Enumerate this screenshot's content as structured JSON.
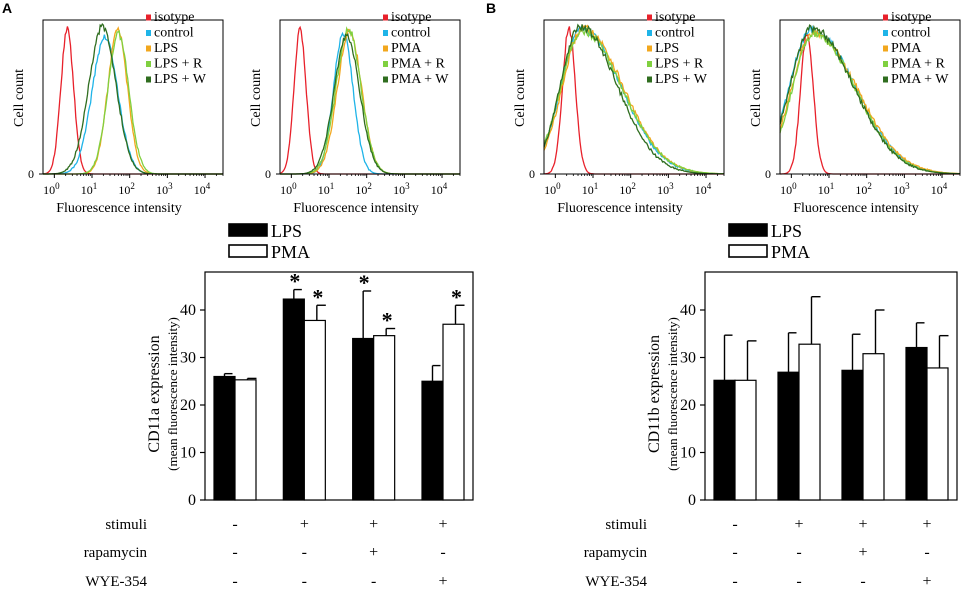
{
  "figure": {
    "panel_labels": [
      "A",
      "B"
    ],
    "row_labels": [
      "stimuli",
      "rapamycin",
      "WYE-354"
    ],
    "row_values": [
      [
        "-",
        "+",
        "+",
        "+"
      ],
      [
        "-",
        "-",
        "+",
        "-"
      ],
      [
        "-",
        "-",
        "-",
        "+"
      ]
    ],
    "colors": {
      "isotype": "#e8212b",
      "control": "#1fb4e8",
      "stim": "#f2a71d",
      "stim_R": "#80d040",
      "stim_W": "#2f6d1f",
      "bar_lps": "#000000",
      "bar_pma": "#ffffff"
    }
  },
  "chart_data": [
    {
      "id": "A-hist-LPS",
      "type": "line",
      "subtype": "histogram",
      "xscale": "log",
      "xlim": [
        0.5,
        30000
      ],
      "xticks": [
        "10^0",
        "10^1",
        "10^2",
        "10^3",
        "10^4"
      ],
      "yticks": [
        "0"
      ],
      "xlabel": "Fluorescence intensity",
      "ylabel": "Cell count",
      "legend": [
        "isotype",
        "control",
        "LPS",
        "LPS + R",
        "LPS + W"
      ],
      "series": [
        {
          "name": "isotype",
          "peak": 2.2,
          "width": 0.17,
          "height": 0.95
        },
        {
          "name": "control",
          "peak": 22,
          "width": 0.34,
          "height": 0.9
        },
        {
          "name": "LPS",
          "peak": 48,
          "width": 0.26,
          "height": 0.95
        },
        {
          "name": "LPS + R",
          "peak": 50,
          "width": 0.28,
          "height": 0.92
        },
        {
          "name": "LPS + W",
          "peak": 19,
          "width": 0.36,
          "height": 0.97
        }
      ]
    },
    {
      "id": "A-hist-PMA",
      "type": "line",
      "subtype": "histogram",
      "xscale": "log",
      "xlim": [
        0.5,
        30000
      ],
      "xticks": [
        "10^0",
        "10^1",
        "10^2",
        "10^3",
        "10^4"
      ],
      "yticks": [
        "0"
      ],
      "xlabel": "Fluorescence intensity",
      "ylabel": "Cell count",
      "legend": [
        "isotype",
        "control",
        "PMA",
        "PMA + R",
        "PMA + W"
      ],
      "series": [
        {
          "name": "isotype",
          "peak": 1.7,
          "width": 0.16,
          "height": 0.95
        },
        {
          "name": "control",
          "peak": 24,
          "width": 0.26,
          "height": 0.93
        },
        {
          "name": "PMA",
          "peak": 35,
          "width": 0.32,
          "height": 0.94
        },
        {
          "name": "PMA + R",
          "peak": 33,
          "width": 0.33,
          "height": 0.95
        },
        {
          "name": "PMA + W",
          "peak": 30,
          "width": 0.34,
          "height": 0.9
        }
      ]
    },
    {
      "id": "B-hist-LPS",
      "type": "line",
      "subtype": "histogram",
      "xscale": "log",
      "xlim": [
        0.5,
        30000
      ],
      "xticks": [
        "10^0",
        "10^1",
        "10^2",
        "10^3",
        "10^4"
      ],
      "yticks": [
        "0"
      ],
      "xlabel": "Fluorescence intensity",
      "ylabel": "Cell count",
      "legend": [
        "isotype",
        "control",
        "LPS",
        "LPS + R",
        "LPS + W"
      ],
      "series": [
        {
          "name": "isotype",
          "peak": 2.3,
          "width": 0.17,
          "height": 0.96
        },
        {
          "name": "control",
          "peak": 5,
          "width": 0.55,
          "height": 0.95,
          "tail": true
        },
        {
          "name": "LPS",
          "peak": 5.5,
          "width": 0.55,
          "height": 0.96,
          "tail": true
        },
        {
          "name": "LPS + R",
          "peak": 5,
          "width": 0.56,
          "height": 0.94,
          "tail": true
        },
        {
          "name": "LPS + W",
          "peak": 4.5,
          "width": 0.52,
          "height": 0.97,
          "tail": true
        }
      ]
    },
    {
      "id": "B-hist-PMA",
      "type": "line",
      "subtype": "histogram",
      "xscale": "log",
      "xlim": [
        0.5,
        30000
      ],
      "xticks": [
        "10^0",
        "10^1",
        "10^2",
        "10^3",
        "10^4"
      ],
      "yticks": [
        "0"
      ],
      "xlabel": "Fluorescence intensity",
      "ylabel": "Cell count",
      "legend": [
        "isotype",
        "control",
        "PMA",
        "PMA + R",
        "PMA + W"
      ],
      "series": [
        {
          "name": "isotype",
          "peak": 2.6,
          "width": 0.17,
          "height": 0.93
        },
        {
          "name": "control",
          "peak": 3.5,
          "width": 0.6,
          "height": 0.95,
          "tail": true
        },
        {
          "name": "PMA",
          "peak": 4,
          "width": 0.6,
          "height": 0.93,
          "tail": true
        },
        {
          "name": "PMA + R",
          "peak": 4,
          "width": 0.58,
          "height": 0.92,
          "tail": true
        },
        {
          "name": "PMA + W",
          "peak": 3.5,
          "width": 0.58,
          "height": 0.96,
          "tail": true
        }
      ]
    },
    {
      "id": "A-bar",
      "type": "bar",
      "ylabel": "CD11a expression",
      "ylabel_sub": "(mean fluorescence intensity)",
      "ylim": [
        0,
        48
      ],
      "yticks": [
        0,
        10,
        20,
        30,
        40
      ],
      "legend": [
        "LPS",
        "PMA"
      ],
      "groups": 4,
      "series": [
        {
          "name": "LPS",
          "values": [
            26.0,
            42.3,
            34.0,
            25.0
          ],
          "errors": [
            0.6,
            2.0,
            10.0,
            3.3
          ],
          "sig": [
            false,
            true,
            true,
            false
          ]
        },
        {
          "name": "PMA",
          "values": [
            25.3,
            37.8,
            34.6,
            37.0
          ],
          "errors": [
            0.3,
            3.2,
            1.5,
            4.0
          ],
          "sig": [
            false,
            true,
            true,
            true
          ]
        }
      ]
    },
    {
      "id": "B-bar",
      "type": "bar",
      "ylabel": "CD11b expression",
      "ylabel_sub": "(mean fluorescence intensity)",
      "ylim": [
        0,
        48
      ],
      "yticks": [
        0,
        10,
        20,
        30,
        40
      ],
      "legend": [
        "LPS",
        "PMA"
      ],
      "groups": 4,
      "series": [
        {
          "name": "LPS",
          "values": [
            25.2,
            26.9,
            27.3,
            32.1
          ],
          "errors": [
            9.5,
            8.3,
            7.6,
            5.2
          ],
          "sig": [
            false,
            false,
            false,
            false
          ]
        },
        {
          "name": "PMA",
          "values": [
            25.2,
            32.8,
            30.8,
            27.8
          ],
          "errors": [
            8.3,
            10.0,
            9.2,
            6.8
          ],
          "sig": [
            false,
            false,
            false,
            false
          ]
        }
      ]
    }
  ]
}
